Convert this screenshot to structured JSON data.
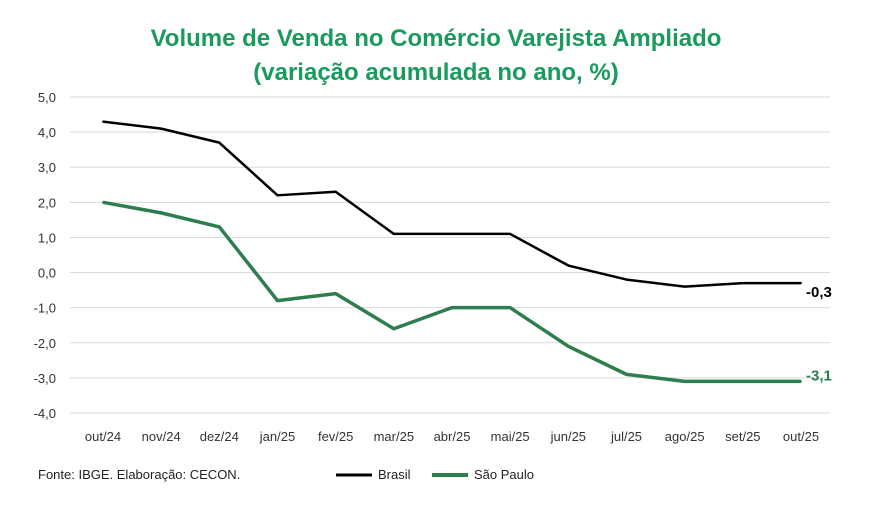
{
  "chart_data": {
    "type": "line",
    "title": "Volume de Venda no Comércio Varejista Ampliado",
    "subtitle": "(variação acumulada no ano, %)",
    "categories": [
      "out/24",
      "nov/24",
      "dez/24",
      "jan/25",
      "fev/25",
      "mar/25",
      "abr/25",
      "mai/25",
      "jun/25",
      "jul/25",
      "ago/25",
      "set/25",
      "out/25"
    ],
    "ylim": [
      -4,
      5
    ],
    "yticks": [
      "5,0",
      "4,0",
      "3,0",
      "2,0",
      "1,0",
      "0,0",
      "-1,0",
      "-2,0",
      "-3,0",
      "-4,0"
    ],
    "grid": true,
    "legend_placement": "bottom",
    "series": [
      {
        "name": "Brasil",
        "color": "#000000",
        "values": [
          4.3,
          4.1,
          3.7,
          2.2,
          2.3,
          1.1,
          1.1,
          1.1,
          0.2,
          -0.2,
          -0.4,
          -0.3,
          -0.3
        ],
        "end_label": "-0,3"
      },
      {
        "name": "São Paulo",
        "color": "#2e7d4f",
        "values": [
          2.0,
          1.7,
          1.3,
          -0.8,
          -0.6,
          -1.6,
          -1.0,
          -1.0,
          -2.1,
          -2.9,
          -3.1,
          -3.1,
          -3.1
        ],
        "end_label": "-3,1"
      }
    ],
    "source": "Fonte: IBGE. Elaboração: CECON.",
    "title_color": "#1a9a5c"
  }
}
